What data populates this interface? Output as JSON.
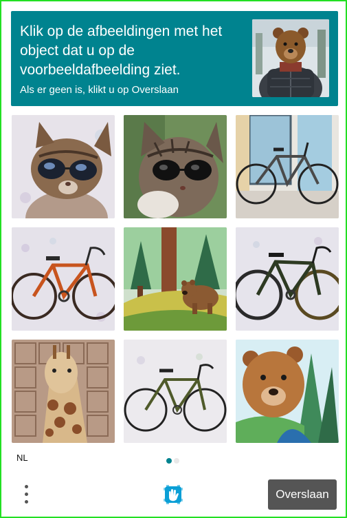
{
  "header": {
    "title": "Klik op de afbeeldingen met het object dat u op de voorbeeldafbeelding ziet.",
    "subtitle": "Als er geen is, klikt u op Overslaan",
    "sample_image": "bear-in-puffer-jacket"
  },
  "grid": {
    "tiles": [
      {
        "subject": "cat-with-sunglasses"
      },
      {
        "subject": "cat-with-sunglasses"
      },
      {
        "subject": "bicycle"
      },
      {
        "subject": "bicycle"
      },
      {
        "subject": "bear-in-forest"
      },
      {
        "subject": "bicycle"
      },
      {
        "subject": "giraffe"
      },
      {
        "subject": "bicycle"
      },
      {
        "subject": "bear"
      }
    ]
  },
  "footer": {
    "language": "NL",
    "pagination": {
      "current": 1,
      "total": 2
    },
    "skip_label": "Overslaan",
    "menu_icon": "vertical-ellipsis-icon",
    "logo_icon": "hcaptcha-hand-icon"
  },
  "colors": {
    "accent": "#00838f",
    "frame": "#22e022",
    "skip_button": "#555555"
  }
}
